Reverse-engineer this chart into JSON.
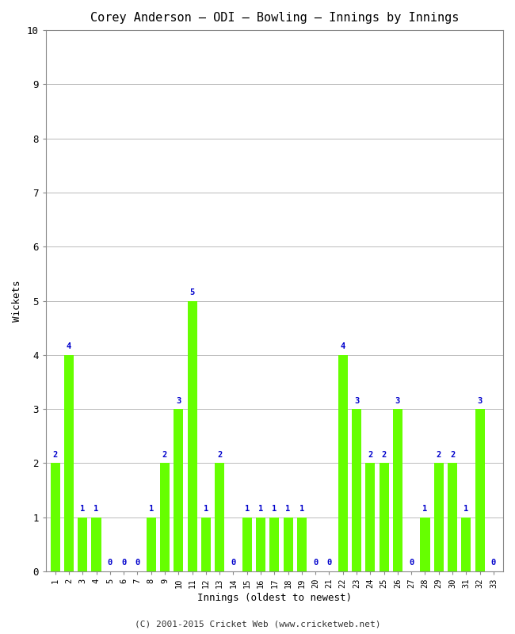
{
  "title": "Corey Anderson – ODI – Bowling – Innings by Innings",
  "xlabel": "Innings (oldest to newest)",
  "ylabel": "Wickets",
  "bar_color": "#66ff00",
  "label_color": "#0000cc",
  "background_color": "#ffffff",
  "grid_color": "#b0b0b0",
  "footer": "(C) 2001-2015 Cricket Web (www.cricketweb.net)",
  "ylim": [
    0,
    10
  ],
  "yticks": [
    0,
    1,
    2,
    3,
    4,
    5,
    6,
    7,
    8,
    9,
    10
  ],
  "innings": [
    1,
    2,
    3,
    4,
    5,
    6,
    7,
    8,
    9,
    10,
    11,
    12,
    13,
    14,
    15,
    16,
    17,
    18,
    19,
    20,
    21,
    22,
    23,
    24,
    25,
    26,
    27,
    28,
    29,
    30,
    31,
    32,
    33
  ],
  "wickets": [
    2,
    4,
    1,
    1,
    0,
    0,
    0,
    1,
    2,
    3,
    5,
    1,
    2,
    0,
    1,
    1,
    1,
    1,
    1,
    0,
    0,
    4,
    3,
    2,
    2,
    3,
    0,
    1,
    2,
    2,
    1,
    3,
    0
  ]
}
